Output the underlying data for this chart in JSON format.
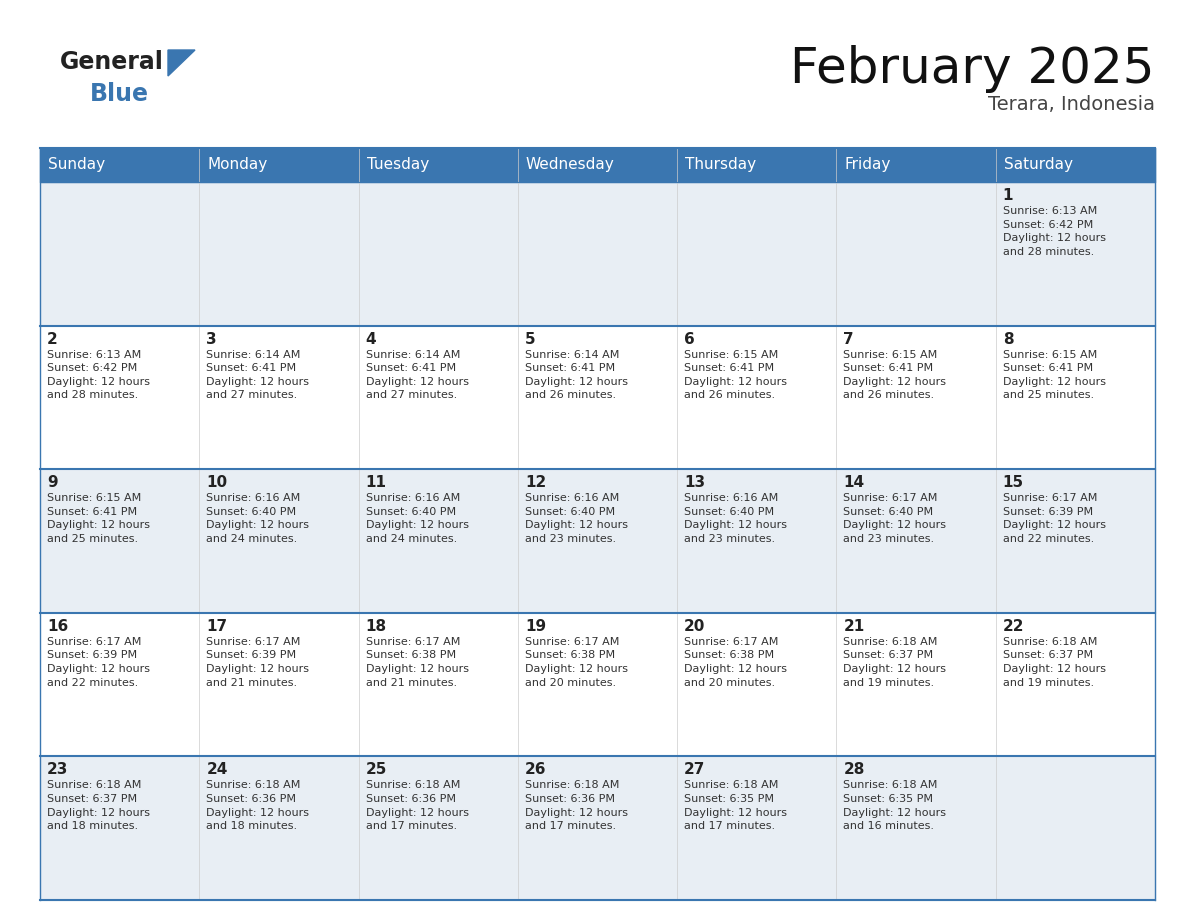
{
  "title": "February 2025",
  "subtitle": "Terara, Indonesia",
  "header_bg_color": "#3A76B0",
  "header_text_color": "#FFFFFF",
  "cell_bg_week1": "#E8EEF4",
  "cell_bg_week2": "#FFFFFF",
  "cell_bg_week3": "#E8EEF4",
  "cell_bg_week4": "#FFFFFF",
  "cell_bg_week5": "#E8EEF4",
  "row_border_color": "#3A76B0",
  "day_headers": [
    "Sunday",
    "Monday",
    "Tuesday",
    "Wednesday",
    "Thursday",
    "Friday",
    "Saturday"
  ],
  "weeks": [
    [
      {
        "day": 0,
        "text": ""
      },
      {
        "day": 0,
        "text": ""
      },
      {
        "day": 0,
        "text": ""
      },
      {
        "day": 0,
        "text": ""
      },
      {
        "day": 0,
        "text": ""
      },
      {
        "day": 0,
        "text": ""
      },
      {
        "day": 1,
        "text": "Sunrise: 6:13 AM\nSunset: 6:42 PM\nDaylight: 12 hours\nand 28 minutes."
      }
    ],
    [
      {
        "day": 2,
        "text": "Sunrise: 6:13 AM\nSunset: 6:42 PM\nDaylight: 12 hours\nand 28 minutes."
      },
      {
        "day": 3,
        "text": "Sunrise: 6:14 AM\nSunset: 6:41 PM\nDaylight: 12 hours\nand 27 minutes."
      },
      {
        "day": 4,
        "text": "Sunrise: 6:14 AM\nSunset: 6:41 PM\nDaylight: 12 hours\nand 27 minutes."
      },
      {
        "day": 5,
        "text": "Sunrise: 6:14 AM\nSunset: 6:41 PM\nDaylight: 12 hours\nand 26 minutes."
      },
      {
        "day": 6,
        "text": "Sunrise: 6:15 AM\nSunset: 6:41 PM\nDaylight: 12 hours\nand 26 minutes."
      },
      {
        "day": 7,
        "text": "Sunrise: 6:15 AM\nSunset: 6:41 PM\nDaylight: 12 hours\nand 26 minutes."
      },
      {
        "day": 8,
        "text": "Sunrise: 6:15 AM\nSunset: 6:41 PM\nDaylight: 12 hours\nand 25 minutes."
      }
    ],
    [
      {
        "day": 9,
        "text": "Sunrise: 6:15 AM\nSunset: 6:41 PM\nDaylight: 12 hours\nand 25 minutes."
      },
      {
        "day": 10,
        "text": "Sunrise: 6:16 AM\nSunset: 6:40 PM\nDaylight: 12 hours\nand 24 minutes."
      },
      {
        "day": 11,
        "text": "Sunrise: 6:16 AM\nSunset: 6:40 PM\nDaylight: 12 hours\nand 24 minutes."
      },
      {
        "day": 12,
        "text": "Sunrise: 6:16 AM\nSunset: 6:40 PM\nDaylight: 12 hours\nand 23 minutes."
      },
      {
        "day": 13,
        "text": "Sunrise: 6:16 AM\nSunset: 6:40 PM\nDaylight: 12 hours\nand 23 minutes."
      },
      {
        "day": 14,
        "text": "Sunrise: 6:17 AM\nSunset: 6:40 PM\nDaylight: 12 hours\nand 23 minutes."
      },
      {
        "day": 15,
        "text": "Sunrise: 6:17 AM\nSunset: 6:39 PM\nDaylight: 12 hours\nand 22 minutes."
      }
    ],
    [
      {
        "day": 16,
        "text": "Sunrise: 6:17 AM\nSunset: 6:39 PM\nDaylight: 12 hours\nand 22 minutes."
      },
      {
        "day": 17,
        "text": "Sunrise: 6:17 AM\nSunset: 6:39 PM\nDaylight: 12 hours\nand 21 minutes."
      },
      {
        "day": 18,
        "text": "Sunrise: 6:17 AM\nSunset: 6:38 PM\nDaylight: 12 hours\nand 21 minutes."
      },
      {
        "day": 19,
        "text": "Sunrise: 6:17 AM\nSunset: 6:38 PM\nDaylight: 12 hours\nand 20 minutes."
      },
      {
        "day": 20,
        "text": "Sunrise: 6:17 AM\nSunset: 6:38 PM\nDaylight: 12 hours\nand 20 minutes."
      },
      {
        "day": 21,
        "text": "Sunrise: 6:18 AM\nSunset: 6:37 PM\nDaylight: 12 hours\nand 19 minutes."
      },
      {
        "day": 22,
        "text": "Sunrise: 6:18 AM\nSunset: 6:37 PM\nDaylight: 12 hours\nand 19 minutes."
      }
    ],
    [
      {
        "day": 23,
        "text": "Sunrise: 6:18 AM\nSunset: 6:37 PM\nDaylight: 12 hours\nand 18 minutes."
      },
      {
        "day": 24,
        "text": "Sunrise: 6:18 AM\nSunset: 6:36 PM\nDaylight: 12 hours\nand 18 minutes."
      },
      {
        "day": 25,
        "text": "Sunrise: 6:18 AM\nSunset: 6:36 PM\nDaylight: 12 hours\nand 17 minutes."
      },
      {
        "day": 26,
        "text": "Sunrise: 6:18 AM\nSunset: 6:36 PM\nDaylight: 12 hours\nand 17 minutes."
      },
      {
        "day": 27,
        "text": "Sunrise: 6:18 AM\nSunset: 6:35 PM\nDaylight: 12 hours\nand 17 minutes."
      },
      {
        "day": 28,
        "text": "Sunrise: 6:18 AM\nSunset: 6:35 PM\nDaylight: 12 hours\nand 16 minutes."
      },
      {
        "day": 0,
        "text": ""
      }
    ]
  ],
  "row_bg_colors": [
    "#E8EEF4",
    "#FFFFFF",
    "#E8EEF4",
    "#FFFFFF",
    "#E8EEF4"
  ],
  "logo_general_color": "#222222",
  "logo_blue_color": "#3A76B0",
  "title_fontsize": 36,
  "subtitle_fontsize": 14,
  "header_fontsize": 11,
  "day_num_fontsize": 11,
  "cell_text_fontsize": 8
}
